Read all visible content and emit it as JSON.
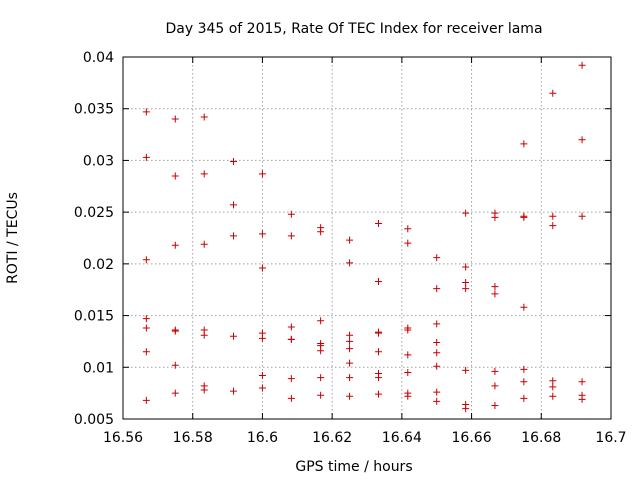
{
  "chart_data": {
    "type": "scatter",
    "title": "Day 345 of 2015, Rate Of TEC Index for receiver lama",
    "xlabel": "GPS time / hours",
    "ylabel": "ROTI / TECUs",
    "xlim": [
      16.56,
      16.7
    ],
    "ylim": [
      0.005,
      0.04
    ],
    "xticks": [
      16.56,
      16.58,
      16.6,
      16.62,
      16.64,
      16.66,
      16.68,
      16.7
    ],
    "xtick_labels": [
      "16.56",
      "16.58",
      "16.6",
      "16.62",
      "16.64",
      "16.66",
      "16.68",
      "16.7"
    ],
    "yticks": [
      0.005,
      0.01,
      0.015,
      0.02,
      0.025,
      0.03,
      0.035,
      0.04
    ],
    "ytick_labels": [
      "0.005",
      "0.01",
      "0.015",
      "0.02",
      "0.025",
      "0.03",
      "0.035",
      "0.04"
    ],
    "grid": true,
    "marker": "+",
    "color": "#cc0000",
    "series": [
      {
        "name": "ROTI",
        "points": [
          [
            16.5667,
            0.0347
          ],
          [
            16.5667,
            0.0303
          ],
          [
            16.5667,
            0.0204
          ],
          [
            16.5667,
            0.0147
          ],
          [
            16.5667,
            0.0138
          ],
          [
            16.5667,
            0.0115
          ],
          [
            16.5667,
            0.0068
          ],
          [
            16.575,
            0.034
          ],
          [
            16.575,
            0.0285
          ],
          [
            16.575,
            0.0218
          ],
          [
            16.575,
            0.0136
          ],
          [
            16.575,
            0.0135
          ],
          [
            16.575,
            0.0102
          ],
          [
            16.575,
            0.0075
          ],
          [
            16.5833,
            0.0342
          ],
          [
            16.5833,
            0.0287
          ],
          [
            16.5833,
            0.0219
          ],
          [
            16.5833,
            0.0136
          ],
          [
            16.5833,
            0.0131
          ],
          [
            16.5833,
            0.0082
          ],
          [
            16.5833,
            0.0078
          ],
          [
            16.5917,
            0.0299
          ],
          [
            16.5917,
            0.0257
          ],
          [
            16.5917,
            0.0227
          ],
          [
            16.5917,
            0.013
          ],
          [
            16.5917,
            0.0077
          ],
          [
            16.6,
            0.0287
          ],
          [
            16.6,
            0.0229
          ],
          [
            16.6,
            0.0196
          ],
          [
            16.6,
            0.0133
          ],
          [
            16.6,
            0.0128
          ],
          [
            16.6,
            0.0092
          ],
          [
            16.6,
            0.008
          ],
          [
            16.6083,
            0.0248
          ],
          [
            16.6083,
            0.0227
          ],
          [
            16.6083,
            0.0139
          ],
          [
            16.6083,
            0.0127
          ],
          [
            16.6083,
            0.0127
          ],
          [
            16.6083,
            0.0089
          ],
          [
            16.6083,
            0.007
          ],
          [
            16.6167,
            0.0235
          ],
          [
            16.6167,
            0.0231
          ],
          [
            16.6167,
            0.0145
          ],
          [
            16.6167,
            0.0123
          ],
          [
            16.6167,
            0.0121
          ],
          [
            16.6167,
            0.0116
          ],
          [
            16.6167,
            0.009
          ],
          [
            16.6167,
            0.0073
          ],
          [
            16.625,
            0.0223
          ],
          [
            16.625,
            0.0201
          ],
          [
            16.625,
            0.0131
          ],
          [
            16.625,
            0.0125
          ],
          [
            16.625,
            0.0118
          ],
          [
            16.625,
            0.0104
          ],
          [
            16.625,
            0.009
          ],
          [
            16.625,
            0.0072
          ],
          [
            16.6333,
            0.0239
          ],
          [
            16.6333,
            0.0183
          ],
          [
            16.6333,
            0.0134
          ],
          [
            16.6333,
            0.0133
          ],
          [
            16.6333,
            0.0115
          ],
          [
            16.6333,
            0.0094
          ],
          [
            16.6333,
            0.009
          ],
          [
            16.6333,
            0.0074
          ],
          [
            16.6417,
            0.0234
          ],
          [
            16.6417,
            0.022
          ],
          [
            16.6417,
            0.0138
          ],
          [
            16.6417,
            0.0136
          ],
          [
            16.6417,
            0.0112
          ],
          [
            16.6417,
            0.0095
          ],
          [
            16.6417,
            0.0075
          ],
          [
            16.6417,
            0.0072
          ],
          [
            16.65,
            0.0206
          ],
          [
            16.65,
            0.0176
          ],
          [
            16.65,
            0.0142
          ],
          [
            16.65,
            0.0124
          ],
          [
            16.65,
            0.0114
          ],
          [
            16.65,
            0.0101
          ],
          [
            16.65,
            0.0076
          ],
          [
            16.65,
            0.0067
          ],
          [
            16.6583,
            0.0249
          ],
          [
            16.6583,
            0.0197
          ],
          [
            16.6583,
            0.0182
          ],
          [
            16.6583,
            0.0176
          ],
          [
            16.6583,
            0.0097
          ],
          [
            16.6583,
            0.0064
          ],
          [
            16.6583,
            0.006
          ],
          [
            16.6667,
            0.0249
          ],
          [
            16.6667,
            0.0245
          ],
          [
            16.6667,
            0.0178
          ],
          [
            16.6667,
            0.0171
          ],
          [
            16.6667,
            0.0096
          ],
          [
            16.6667,
            0.0082
          ],
          [
            16.6667,
            0.0063
          ],
          [
            16.675,
            0.0316
          ],
          [
            16.675,
            0.0246
          ],
          [
            16.675,
            0.0245
          ],
          [
            16.675,
            0.0158
          ],
          [
            16.675,
            0.0098
          ],
          [
            16.675,
            0.0086
          ],
          [
            16.675,
            0.007
          ],
          [
            16.6833,
            0.0365
          ],
          [
            16.6833,
            0.0246
          ],
          [
            16.6833,
            0.0237
          ],
          [
            16.6833,
            0.0087
          ],
          [
            16.6833,
            0.0081
          ],
          [
            16.6833,
            0.0072
          ],
          [
            16.6917,
            0.0392
          ],
          [
            16.6917,
            0.032
          ],
          [
            16.6917,
            0.0246
          ],
          [
            16.6917,
            0.0086
          ],
          [
            16.6917,
            0.0073
          ],
          [
            16.6917,
            0.0069
          ]
        ]
      }
    ]
  }
}
